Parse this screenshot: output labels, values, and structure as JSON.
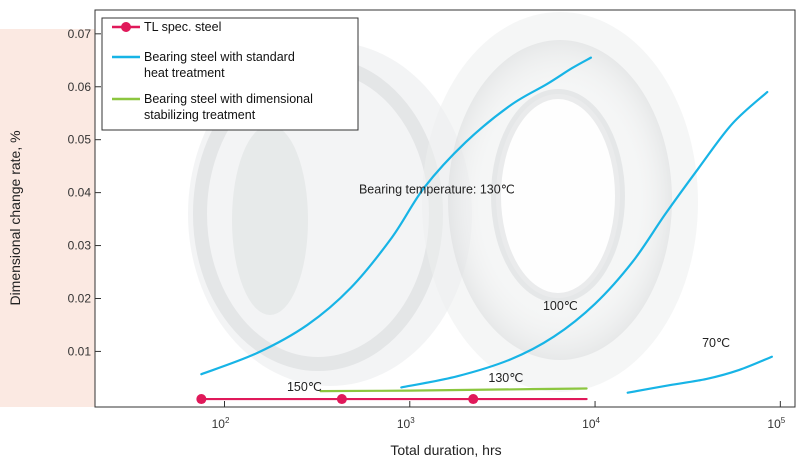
{
  "colors": {
    "tl": "#e0195a",
    "standard": "#17b4e6",
    "stabilizing": "#8cc63f",
    "band": "#fbe9e2"
  },
  "chart_data": {
    "type": "line",
    "title": "",
    "xlabel": "Total duration, hrs",
    "ylabel": "Dimensional change rate, %",
    "x_scale": "log",
    "xlim": [
      20,
      120000
    ],
    "ylim": [
      -0.0005,
      0.0745
    ],
    "x_ticks": [
      {
        "value": 100,
        "base": "10",
        "exp": "2"
      },
      {
        "value": 1000,
        "base": "10",
        "exp": "3"
      },
      {
        "value": 10000,
        "base": "10",
        "exp": "4"
      },
      {
        "value": 100000,
        "base": "10",
        "exp": "5"
      }
    ],
    "y_ticks": [
      {
        "value": 0.01,
        "label": "0.01"
      },
      {
        "value": 0.02,
        "label": "0.02"
      },
      {
        "value": 0.03,
        "label": "0.03"
      },
      {
        "value": 0.04,
        "label": "0.04"
      },
      {
        "value": 0.05,
        "label": "0.05"
      },
      {
        "value": 0.06,
        "label": "0.06"
      },
      {
        "value": 0.07,
        "label": "0.07"
      }
    ],
    "legend": {
      "placement": "top-left",
      "entries": [
        {
          "key": "tl",
          "lines": [
            "TL spec. steel"
          ]
        },
        {
          "key": "standard",
          "lines": [
            "Bearing steel with standard",
            "heat treatment"
          ]
        },
        {
          "key": "stabilizing",
          "lines": [
            "Bearing steel with dimensional",
            "stabilizing treatment"
          ]
        }
      ]
    },
    "series": [
      {
        "key": "tl",
        "label": "150℃",
        "label_at": [
          270,
          0.0025
        ],
        "x": [
          75,
          450,
          2200,
          9000
        ],
        "y": [
          0.001,
          0.001,
          0.001,
          0.001
        ],
        "markers": [
          75,
          430,
          2200
        ]
      },
      {
        "key": "standard",
        "label": "Bearing temperature: 130℃",
        "label_at": [
          1400,
          0.0398
        ],
        "x": [
          75,
          150,
          280,
          480,
          800,
          1200,
          2000,
          3500,
          5500,
          7500,
          9500
        ],
        "y": [
          0.0057,
          0.0097,
          0.015,
          0.022,
          0.0315,
          0.041,
          0.0495,
          0.0565,
          0.0605,
          0.0635,
          0.0655
        ]
      },
      {
        "key": "standard",
        "label": "100℃",
        "label_at": [
          6500,
          0.0178
        ],
        "x": [
          900,
          1800,
          3500,
          6000,
          10000,
          16000,
          24000,
          36000,
          55000,
          85000
        ],
        "y": [
          0.0032,
          0.0053,
          0.0085,
          0.0128,
          0.019,
          0.027,
          0.036,
          0.0445,
          0.053,
          0.059
        ]
      },
      {
        "key": "standard",
        "label": "70℃",
        "label_at": [
          45000,
          0.0108
        ],
        "x": [
          15000,
          25000,
          40000,
          60000,
          90000
        ],
        "y": [
          0.0022,
          0.0036,
          0.0048,
          0.0065,
          0.009
        ]
      },
      {
        "key": "stabilizing",
        "label": "130℃",
        "label_at": [
          3300,
          0.0042
        ],
        "x": [
          330,
          1000,
          3000,
          9000
        ],
        "y": [
          0.0025,
          0.0026,
          0.0028,
          0.003
        ]
      }
    ]
  }
}
